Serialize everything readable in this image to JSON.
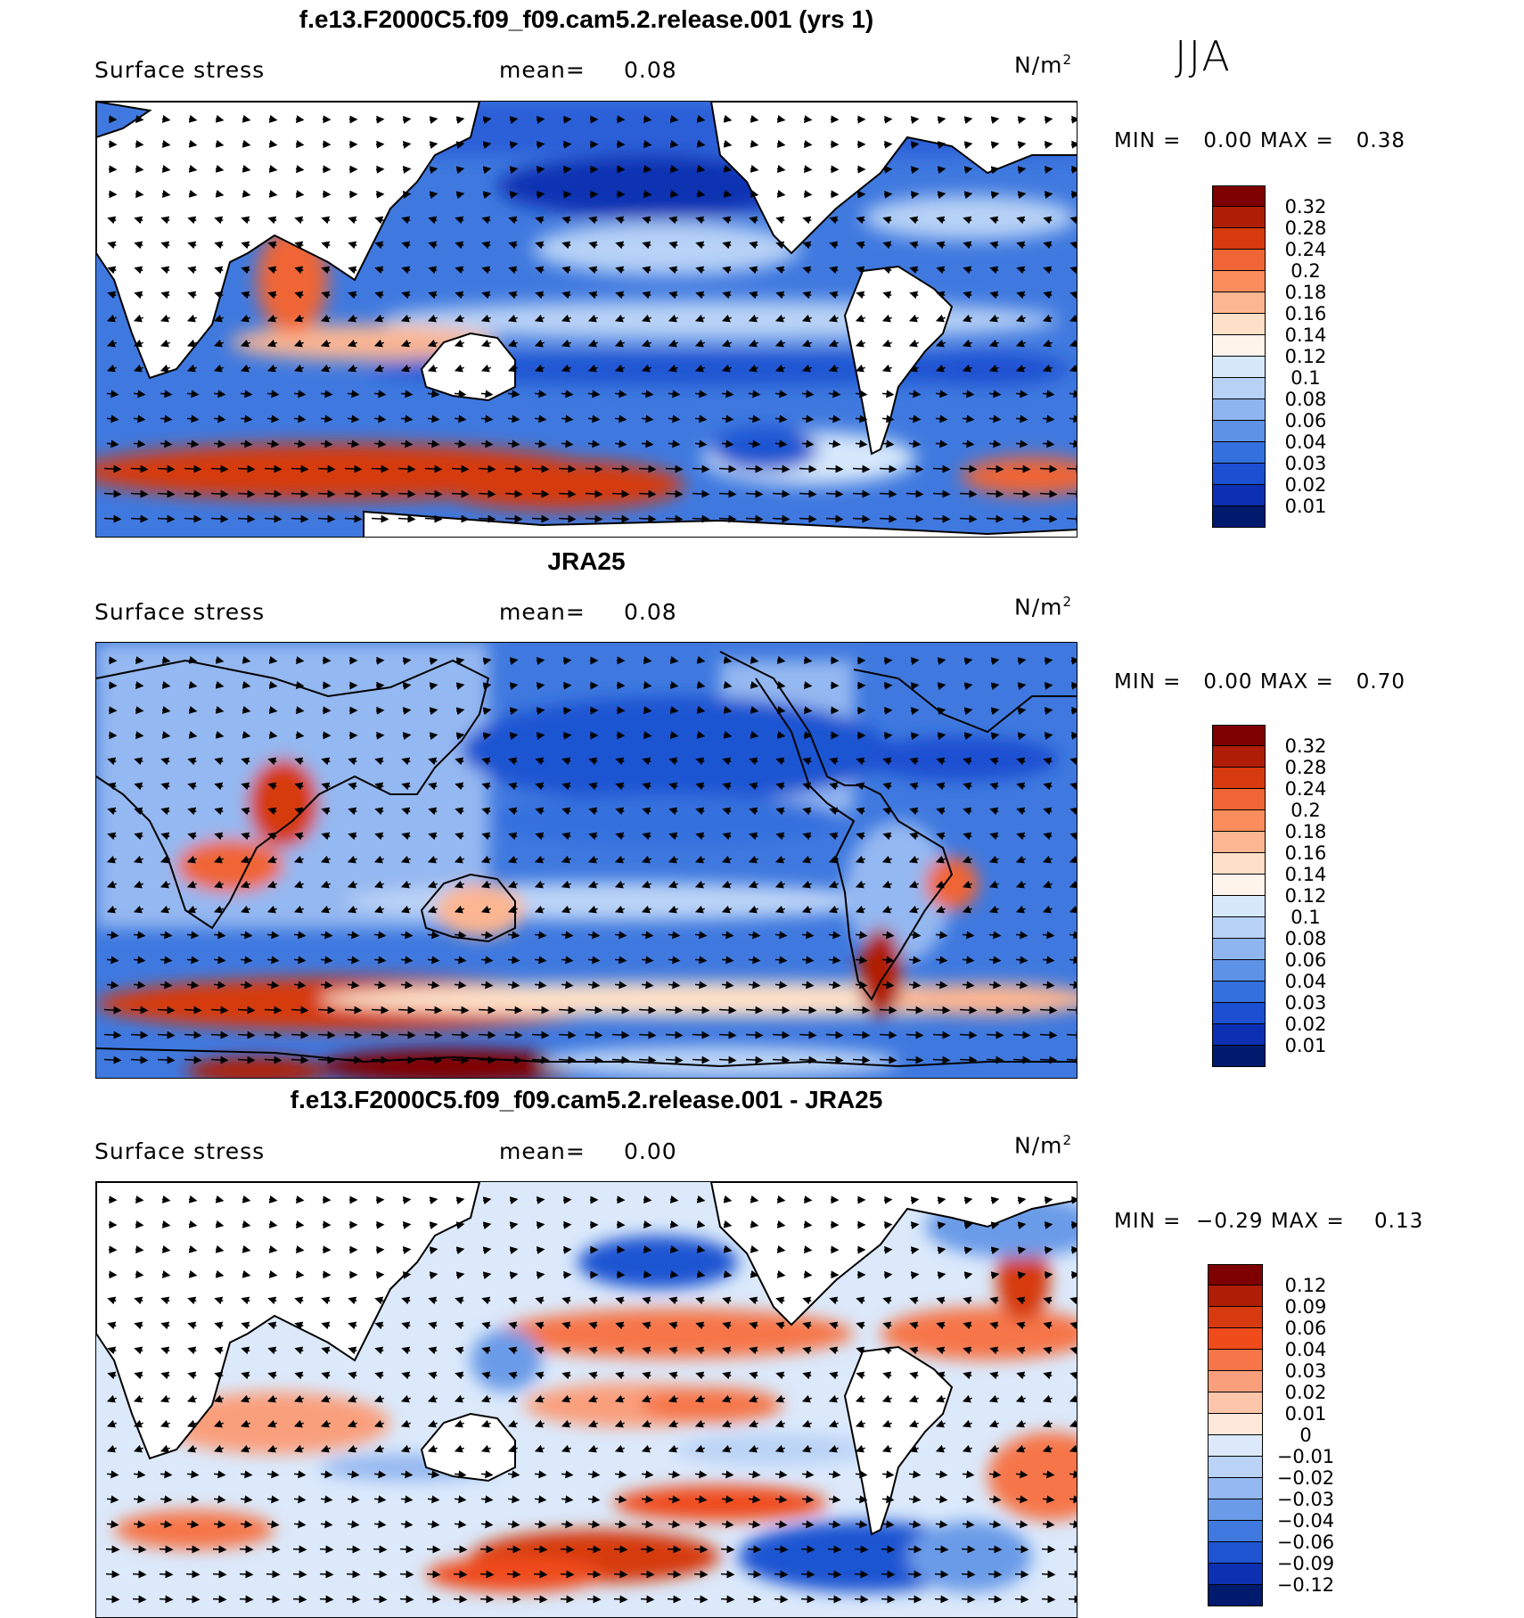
{
  "season": "JJA",
  "panels": [
    {
      "title": "f.e13.F2000C5.f09_f09.cam5.2.release.001 (yrs 1)",
      "variable": "Surface stress",
      "mean_label": "mean=",
      "mean_value": "0.08",
      "units": "N/m",
      "units_sup": "2",
      "min_label": "MIN =",
      "min_value": "0.00",
      "max_label": "MAX =",
      "max_value": "0.38",
      "ticks": [
        "0.32",
        "0.28",
        "0.24",
        "0.2",
        "0.18",
        "0.16",
        "0.14",
        "0.12",
        "0.1",
        "0.08",
        "0.06",
        "0.04",
        "0.03",
        "0.02",
        "0.01"
      ],
      "colors": [
        "#7f0000",
        "#b01d06",
        "#d63a0e",
        "#f06535",
        "#fb8d5c",
        "#fcb692",
        "#fde0c8",
        "#fff4ec",
        "#d7e8fb",
        "#b7d2f6",
        "#8eb5f0",
        "#5d92e6",
        "#3571de",
        "#1c4fd1",
        "#0b30b3",
        "#001a6e"
      ]
    },
    {
      "title": "JRA25",
      "variable": "Surface stress",
      "mean_label": "mean=",
      "mean_value": "0.08",
      "units": "N/m",
      "units_sup": "2",
      "min_label": "MIN =",
      "min_value": "0.00",
      "max_label": "MAX =",
      "max_value": "0.70",
      "ticks": [
        "0.32",
        "0.28",
        "0.24",
        "0.2",
        "0.18",
        "0.16",
        "0.14",
        "0.12",
        "0.1",
        "0.08",
        "0.06",
        "0.04",
        "0.03",
        "0.02",
        "0.01"
      ],
      "colors": [
        "#7f0000",
        "#b01d06",
        "#d63a0e",
        "#f06535",
        "#fb8d5c",
        "#fcb692",
        "#fde0c8",
        "#fff4ec",
        "#d7e8fb",
        "#b7d2f6",
        "#8eb5f0",
        "#5d92e6",
        "#3571de",
        "#1c4fd1",
        "#0b30b3",
        "#001a6e"
      ]
    },
    {
      "title": "f.e13.F2000C5.f09_f09.cam5.2.release.001 - JRA25",
      "variable": "Surface stress",
      "mean_label": "mean=",
      "mean_value": "0.00",
      "units": "N/m",
      "units_sup": "2",
      "min_label": "MIN =",
      "min_value": "−0.29",
      "max_label": "MAX =",
      "max_value": "0.13",
      "ticks": [
        "0.12",
        "0.09",
        "0.06",
        "0.04",
        "0.03",
        "0.02",
        "0.01",
        "0",
        "−0.01",
        "−0.02",
        "−0.03",
        "−0.04",
        "−0.06",
        "−0.09",
        "−0.12"
      ],
      "colors": [
        "#7f0000",
        "#b01d06",
        "#d63a0e",
        "#f04b1a",
        "#f6764a",
        "#fa9f7c",
        "#fdc5aa",
        "#fde8da",
        "#dbe9fb",
        "#bad3f6",
        "#94b8f1",
        "#6a9be8",
        "#3f79df",
        "#1f54d2",
        "#0b31b2",
        "#001a6e"
      ]
    }
  ],
  "chart_data": [
    {
      "type": "heatmap",
      "title": "f.e13.F2000C5.f09_f09.cam5.2.release.001 (yrs 1)",
      "season": "JJA",
      "variable": "Surface stress",
      "units": "N/m2",
      "mean": 0.08,
      "min": 0.0,
      "max": 0.38,
      "contour_levels": [
        0.01,
        0.02,
        0.03,
        0.04,
        0.06,
        0.08,
        0.1,
        0.12,
        0.14,
        0.16,
        0.18,
        0.2,
        0.24,
        0.28,
        0.32
      ],
      "vectors": true
    },
    {
      "type": "heatmap",
      "title": "JRA25",
      "season": "JJA",
      "variable": "Surface stress",
      "units": "N/m2",
      "mean": 0.08,
      "min": 0.0,
      "max": 0.7,
      "contour_levels": [
        0.01,
        0.02,
        0.03,
        0.04,
        0.06,
        0.08,
        0.1,
        0.12,
        0.14,
        0.16,
        0.18,
        0.2,
        0.24,
        0.28,
        0.32
      ],
      "vectors": true
    },
    {
      "type": "heatmap",
      "title": "f.e13.F2000C5.f09_f09.cam5.2.release.001 - JRA25",
      "season": "JJA",
      "variable": "Surface stress",
      "units": "N/m2",
      "mean": 0.0,
      "min": -0.29,
      "max": 0.13,
      "contour_levels": [
        -0.12,
        -0.09,
        -0.06,
        -0.04,
        -0.03,
        -0.02,
        -0.01,
        0,
        0.01,
        0.02,
        0.03,
        0.04,
        0.06,
        0.09,
        0.12
      ],
      "vectors": true
    }
  ]
}
